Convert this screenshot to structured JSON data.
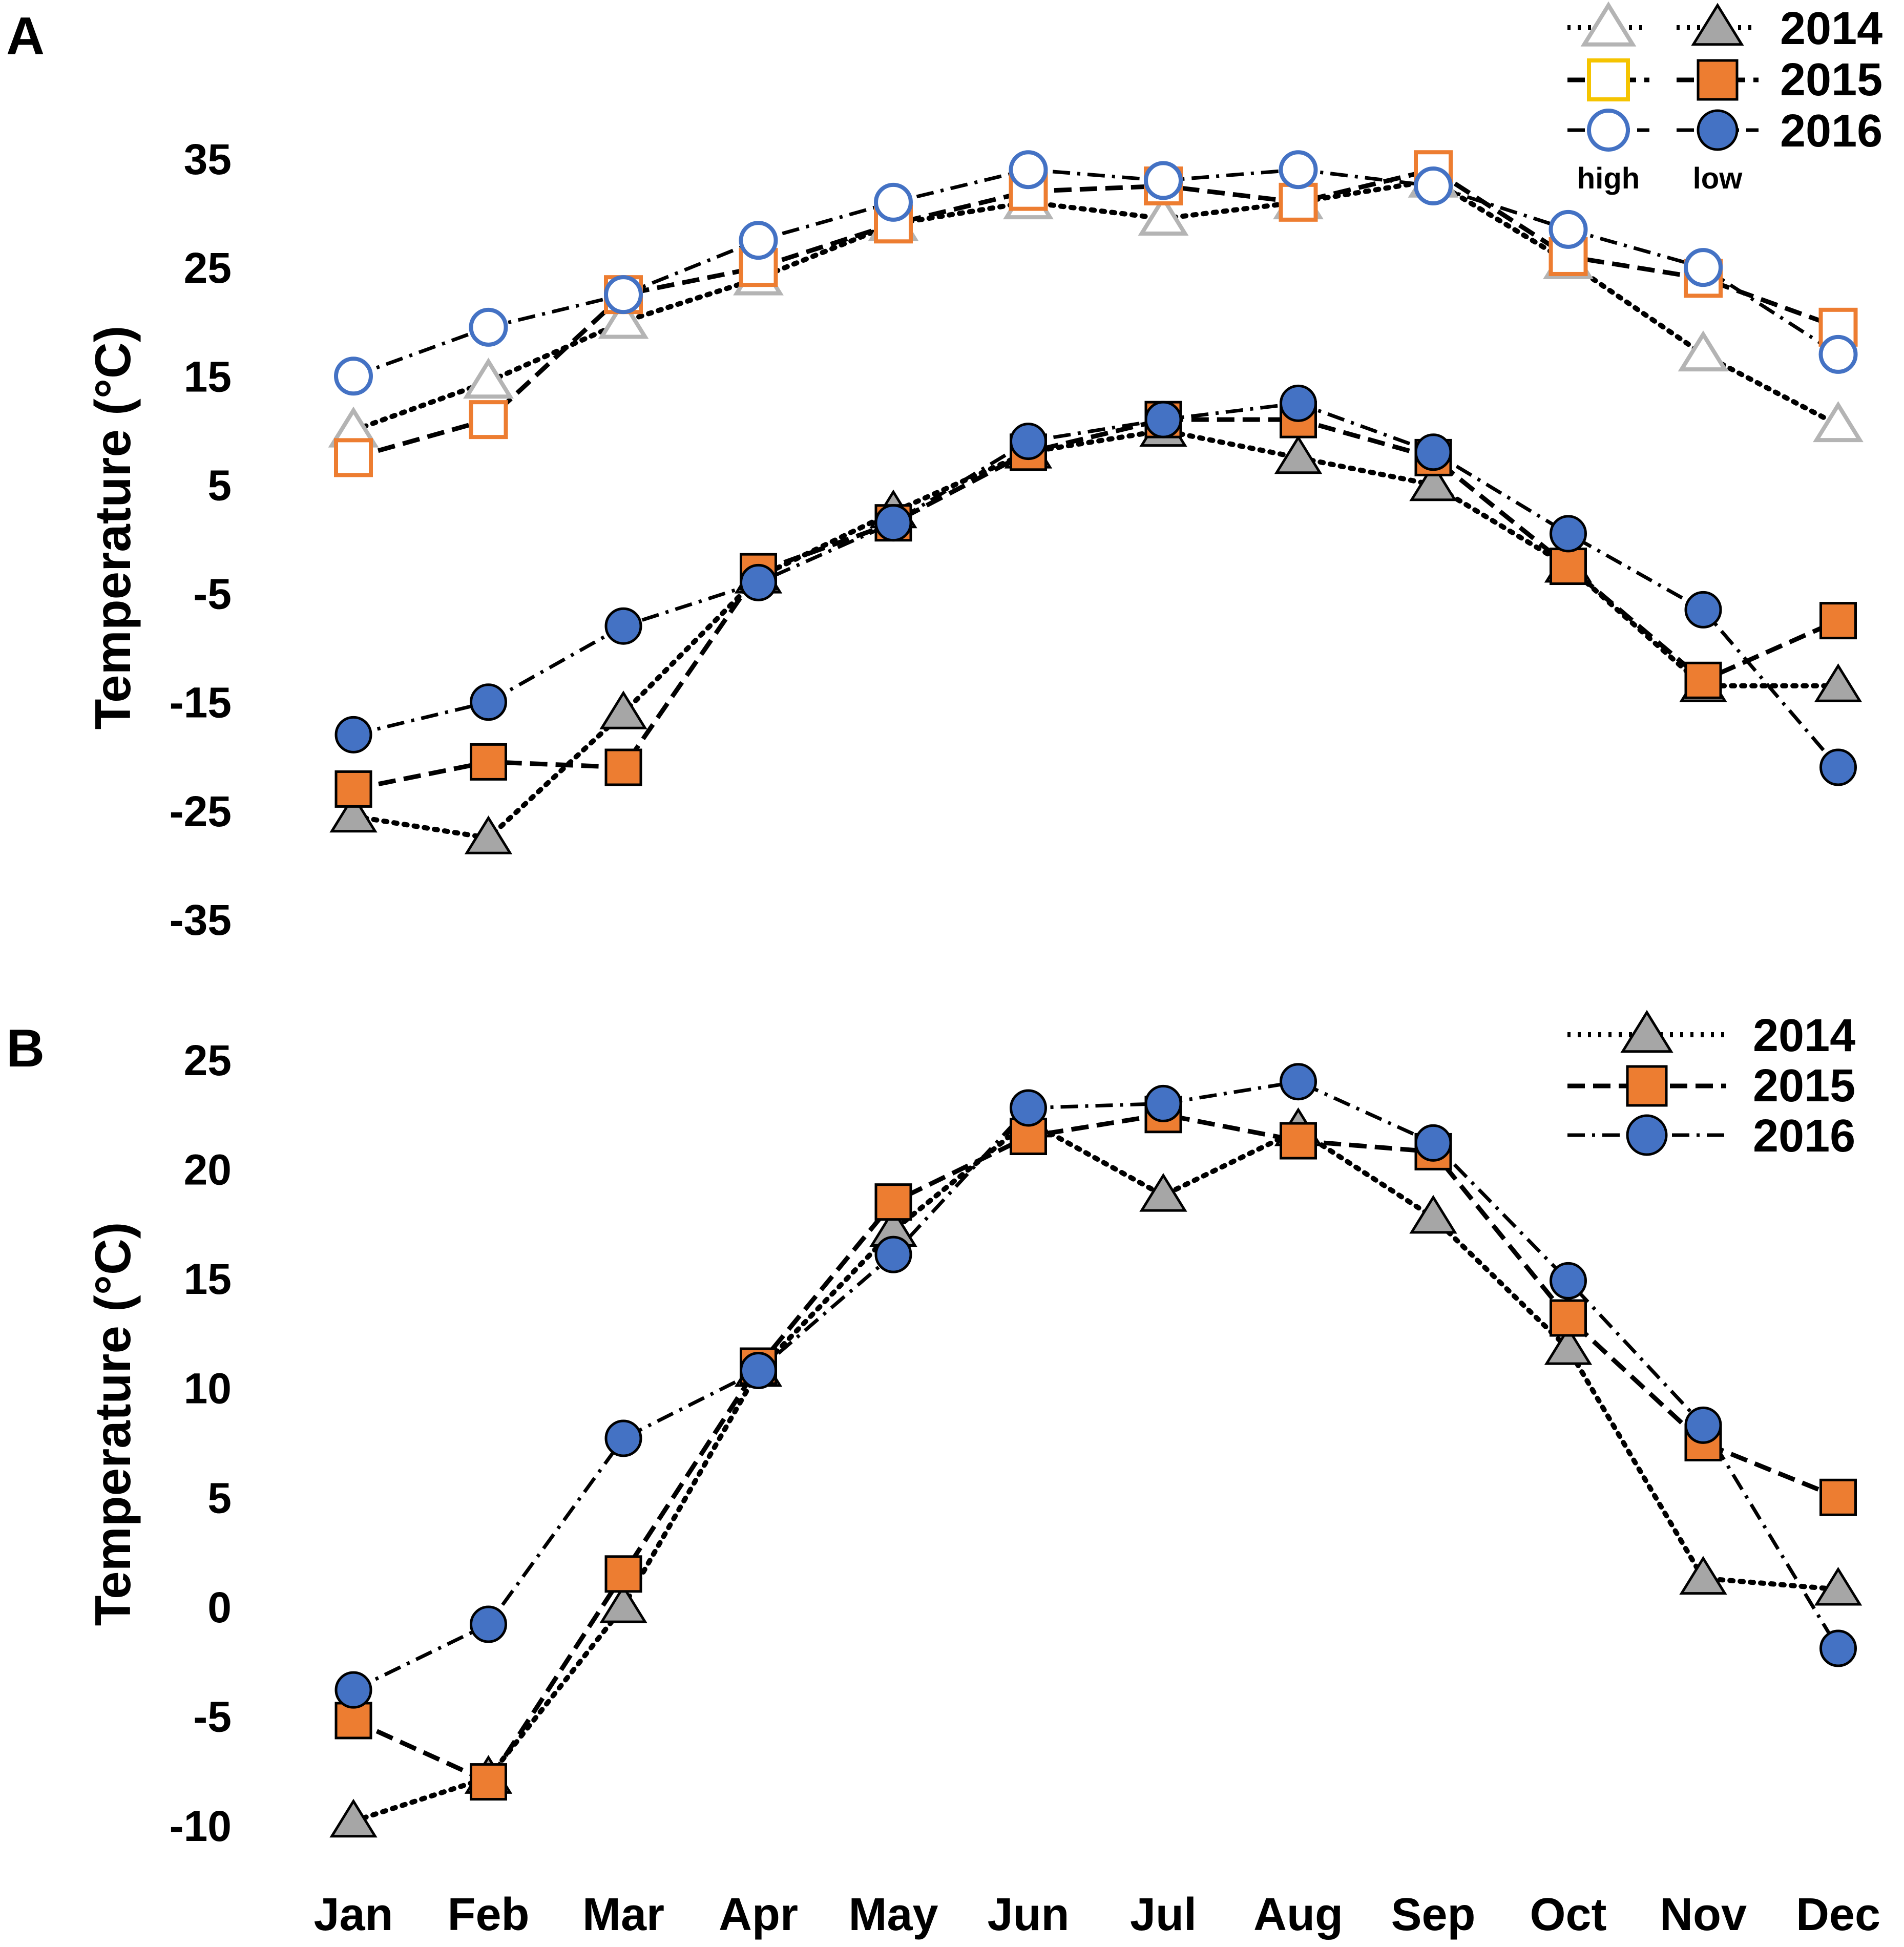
{
  "figure": {
    "panel_a_label": "A",
    "panel_b_label": "B",
    "legend_high_label": "high",
    "legend_low_label": "low",
    "month_labels": [
      "Jan",
      "Feb",
      "Mar",
      "Apr",
      "May",
      "Jun",
      "Jul",
      "Aug",
      "Sep",
      "Oct",
      "Nov",
      "Dec"
    ]
  },
  "colors": {
    "gray_fill": "#a6a6a6",
    "gray_outline": "#b4b4b4",
    "orange_fill": "#ed7d31",
    "orange_outline": "#ed7d31",
    "yellow_outline": "#f5c400",
    "blue_fill": "#4472c4",
    "blue_outline": "#4472c4",
    "line": "#000000"
  },
  "chart_data": [
    {
      "panel": "A",
      "type": "line",
      "title": "",
      "xlabel": "",
      "ylabel": "Temperature (°C)",
      "ylim": [
        -35,
        35
      ],
      "yticks": [
        35,
        25,
        15,
        5,
        -5,
        -15,
        -25,
        -35
      ],
      "ytick_labels": [
        "35",
        "25",
        "15",
        "5",
        "-5",
        "-15",
        "-25",
        "-35"
      ],
      "categories": [
        "Jan",
        "Feb",
        "Mar",
        "Apr",
        "May",
        "Jun",
        "Jul",
        "Aug",
        "Sep",
        "Oct",
        "Nov",
        "Dec"
      ],
      "legend_position": "top-right",
      "series": [
        {
          "name": "2014",
          "kind": "high",
          "marker": "triangle",
          "filled": false,
          "dash": "dotted",
          "values": [
            10,
            14.5,
            20,
            24,
            29,
            31,
            29.5,
            31,
            33,
            25.5,
            17,
            10.5
          ]
        },
        {
          "name": "2015",
          "kind": "high",
          "marker": "square",
          "filled": false,
          "dash": "dashed",
          "values": [
            7.5,
            11,
            22.5,
            25,
            29,
            32,
            32.5,
            31,
            34,
            26,
            24,
            19.5
          ]
        },
        {
          "name": "2016",
          "kind": "high",
          "marker": "circle",
          "filled": false,
          "dash": "dashdot",
          "values": [
            15,
            19.5,
            22.5,
            27.5,
            31,
            34,
            33,
            34,
            32.5,
            28.5,
            25,
            17
          ]
        },
        {
          "name": "2014",
          "kind": "low",
          "marker": "triangle",
          "filled": true,
          "dash": "dotted",
          "values": [
            -25.5,
            -27.5,
            -16,
            -3.5,
            2.5,
            8,
            10,
            7.5,
            5,
            -2.5,
            -13.5,
            -13.5
          ]
        },
        {
          "name": "2015",
          "kind": "low",
          "marker": "square",
          "filled": true,
          "dash": "dashed",
          "values": [
            -23,
            -20.5,
            -21,
            -3,
            1.5,
            8,
            11,
            11,
            7.5,
            -2.5,
            -13,
            -7.5
          ]
        },
        {
          "name": "2016",
          "kind": "low",
          "marker": "circle",
          "filled": true,
          "dash": "dashdot",
          "values": [
            -18,
            -15,
            -8,
            -4,
            1.5,
            9,
            11,
            12.5,
            8,
            0.5,
            -6.5,
            -21
          ]
        }
      ]
    },
    {
      "panel": "B",
      "type": "line",
      "title": "",
      "xlabel": "",
      "ylabel": "Temperature (°C)",
      "ylim": [
        -10,
        25
      ],
      "yticks": [
        25,
        20,
        15,
        10,
        5,
        0,
        -5,
        -10
      ],
      "ytick_labels": [
        "25",
        "20",
        "15",
        "10",
        "5",
        "0",
        "-5",
        "-10"
      ],
      "categories": [
        "Jan",
        "Feb",
        "Mar",
        "Apr",
        "May",
        "Jun",
        "Jul",
        "Aug",
        "Sep",
        "Oct",
        "Nov",
        "Dec"
      ],
      "legend_position": "top-right",
      "series": [
        {
          "name": "2014",
          "marker": "triangle",
          "filled": true,
          "dash": "dotted",
          "values": [
            -9.8,
            -7.8,
            0,
            10.8,
            17.2,
            22.2,
            18.8,
            21.8,
            17.8,
            11.8,
            1.3,
            0.8
          ]
        },
        {
          "name": "2015",
          "marker": "square",
          "filled": true,
          "dash": "dashed",
          "values": [
            -5.2,
            -8,
            1.5,
            11,
            18.5,
            21.5,
            22.5,
            21.3,
            20.8,
            13.2,
            7.5,
            5
          ]
        },
        {
          "name": "2016",
          "marker": "circle",
          "filled": true,
          "dash": "dashdot",
          "values": [
            -3.8,
            -0.8,
            7.7,
            10.8,
            16.1,
            22.8,
            23,
            24,
            21.2,
            14.9,
            8.3,
            -1.9
          ]
        }
      ]
    }
  ]
}
